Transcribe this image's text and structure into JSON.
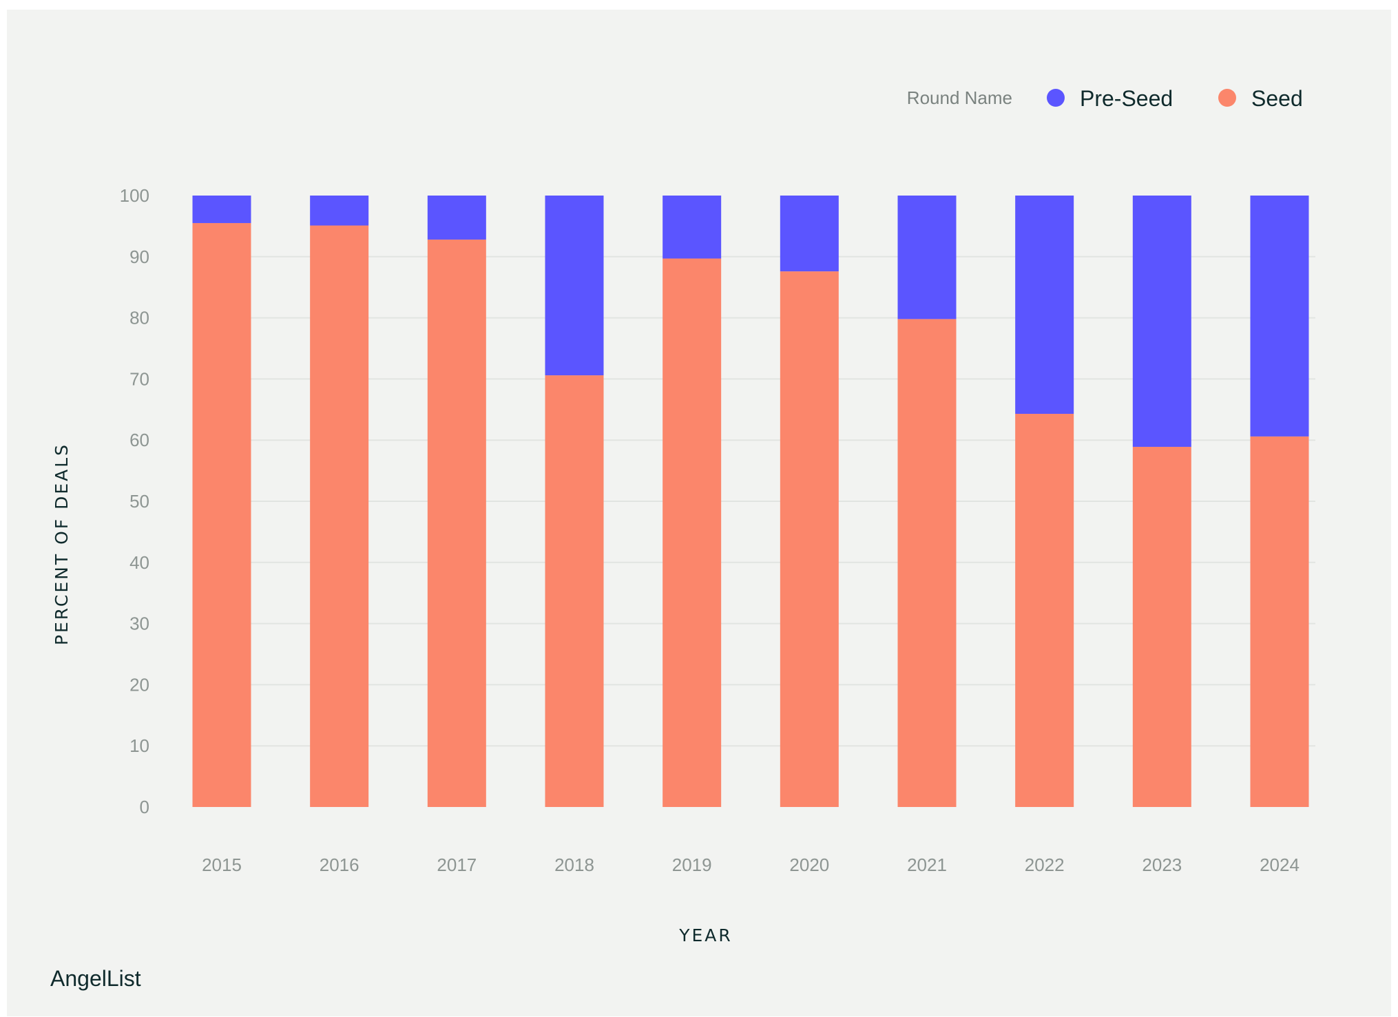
{
  "brand": "AngelList",
  "legend": {
    "title": "Round Name"
  },
  "colors": {
    "Pre-Seed": "#5b55ff",
    "Seed": "#fb866b",
    "background": "#f2f3f1"
  },
  "chart_data": {
    "type": "bar",
    "stacked": true,
    "categories": [
      "2015",
      "2016",
      "2017",
      "2018",
      "2019",
      "2020",
      "2021",
      "2022",
      "2023",
      "2024"
    ],
    "series": [
      {
        "name": "Seed",
        "values": [
          95.5,
          95.1,
          92.8,
          70.6,
          89.7,
          87.6,
          79.8,
          64.3,
          58.9,
          60.6
        ]
      },
      {
        "name": "Pre-Seed",
        "values": [
          4.5,
          4.9,
          7.2,
          29.4,
          10.3,
          12.4,
          20.2,
          35.7,
          41.1,
          39.4
        ]
      }
    ],
    "xlabel": "YEAR",
    "ylabel": "PERCENT OF DEALS",
    "ylim": [
      0,
      100
    ],
    "yticks": [
      "0",
      "10",
      "20",
      "30",
      "40",
      "50",
      "60",
      "70",
      "80",
      "90",
      "100"
    ],
    "grid": true,
    "legend_position": "top-right"
  }
}
